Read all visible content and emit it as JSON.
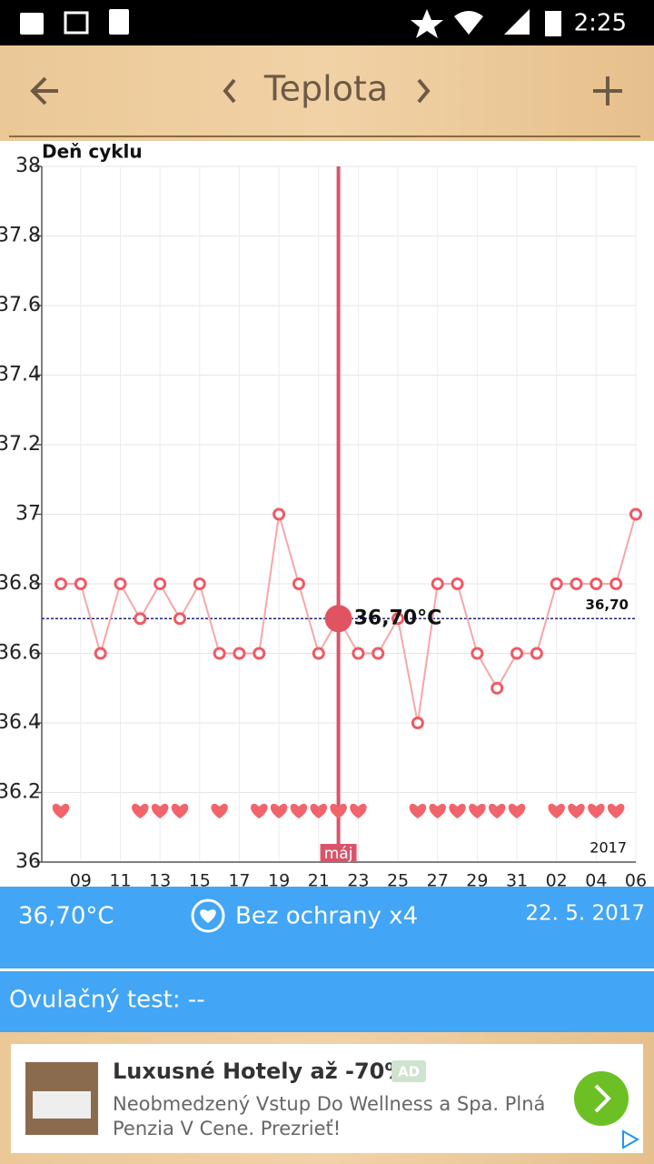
{
  "status_bar": {
    "time": "2:25"
  },
  "toolbar": {
    "title": "Teplota"
  },
  "chart_data": {
    "type": "line",
    "y_label": "Deň cyklu",
    "categories": [
      null,
      "09",
      null,
      "11",
      null,
      "13",
      null,
      "15",
      null,
      "17",
      null,
      "19",
      null,
      "21",
      null,
      "23",
      null,
      "25",
      null,
      "27",
      null,
      "29",
      null,
      "31",
      null,
      "02",
      null,
      "04",
      null,
      "06"
    ],
    "values": [
      36.8,
      36.8,
      36.6,
      36.8,
      36.7,
      36.8,
      36.7,
      36.8,
      36.6,
      36.6,
      36.6,
      37.0,
      36.8,
      36.6,
      36.7,
      36.6,
      36.6,
      36.7,
      36.4,
      36.8,
      36.8,
      36.6,
      36.5,
      36.6,
      36.6,
      36.8,
      36.8,
      36.8,
      36.8,
      37.0
    ],
    "color": "#ef5a64",
    "intercourse": [
      true,
      false,
      false,
      false,
      true,
      true,
      true,
      false,
      true,
      false,
      true,
      true,
      true,
      true,
      true,
      true,
      false,
      false,
      true,
      true,
      true,
      true,
      true,
      true,
      false,
      true,
      true,
      true,
      true,
      false
    ],
    "heart_color": "#f2646c",
    "ylim": [
      36,
      38
    ],
    "yticks": [
      36,
      36.2,
      36.4,
      36.6,
      36.8,
      37,
      37.2,
      37.4,
      37.6,
      37.8,
      38
    ],
    "grid": true,
    "selected": {
      "index": 14,
      "value_label": "36,70°C",
      "month_label": "máj"
    },
    "reference_line": {
      "value": 36.7,
      "label": "36,70",
      "color": "#1a237e"
    },
    "year_label": "2017"
  },
  "summary": {
    "temperature": "36,70°C",
    "protection": "Bez ochrany x4",
    "date": "22. 5. 2017",
    "ovulation_test": "Ovulačný test: --"
  },
  "ad": {
    "title": "Luxusné Hotely až -70%",
    "badge": "AD",
    "line1": "Neobmedzený Vstup Do Wellness a Spa. Plná",
    "line2": "Penzia V Cene. Prezrieť!"
  }
}
